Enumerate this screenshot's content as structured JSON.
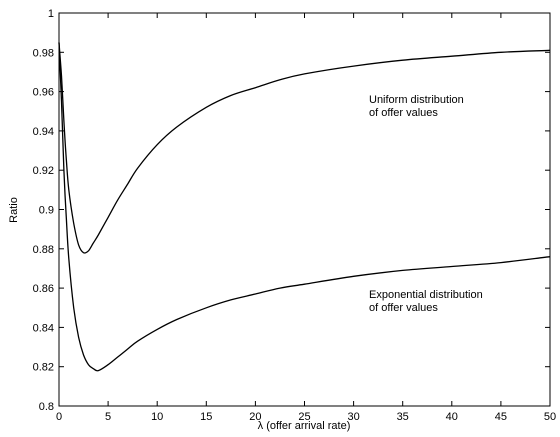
{
  "chart_data": {
    "type": "line",
    "title": "",
    "xlabel": "λ (offer arrival rate)",
    "ylabel": "Ratio",
    "xlim": [
      0,
      50
    ],
    "ylim": [
      0.8,
      1.0
    ],
    "xticks": [
      "0",
      "5",
      "10",
      "15",
      "20",
      "25",
      "30",
      "35",
      "40",
      "45",
      "50"
    ],
    "yticks": [
      "0.8",
      "0.82",
      "0.84",
      "0.86",
      "0.88",
      "0.9",
      "0.92",
      "0.94",
      "0.96",
      "0.98",
      "1"
    ],
    "grid": false,
    "line_color": "#000000",
    "series": [
      {
        "annotation": [
          "Uniform distribution",
          "of offer values"
        ],
        "x": [
          0,
          0.25,
          0.5,
          0.75,
          1,
          1.5,
          2,
          2.5,
          3,
          3.5,
          4,
          5,
          6,
          7,
          8,
          10,
          12,
          15,
          17.5,
          20,
          22.5,
          25,
          30,
          35,
          40,
          45,
          50
        ],
        "y": [
          0.985,
          0.968,
          0.945,
          0.925,
          0.91,
          0.893,
          0.882,
          0.878,
          0.879,
          0.883,
          0.887,
          0.896,
          0.905,
          0.913,
          0.921,
          0.933,
          0.942,
          0.952,
          0.958,
          0.962,
          0.966,
          0.969,
          0.973,
          0.976,
          0.978,
          0.98,
          0.981
        ]
      },
      {
        "annotation": [
          "Exponential distribution",
          "of offer values"
        ],
        "x": [
          0,
          0.25,
          0.5,
          0.75,
          1,
          1.5,
          2,
          2.5,
          3,
          3.5,
          4,
          5,
          6,
          7,
          8,
          10,
          12,
          15,
          17.5,
          20,
          22.5,
          25,
          30,
          35,
          40,
          45,
          50
        ],
        "y": [
          0.985,
          0.955,
          0.92,
          0.895,
          0.875,
          0.85,
          0.835,
          0.826,
          0.821,
          0.819,
          0.818,
          0.821,
          0.825,
          0.829,
          0.833,
          0.839,
          0.844,
          0.85,
          0.854,
          0.857,
          0.86,
          0.862,
          0.866,
          0.869,
          0.871,
          0.873,
          0.876
        ]
      }
    ]
  }
}
